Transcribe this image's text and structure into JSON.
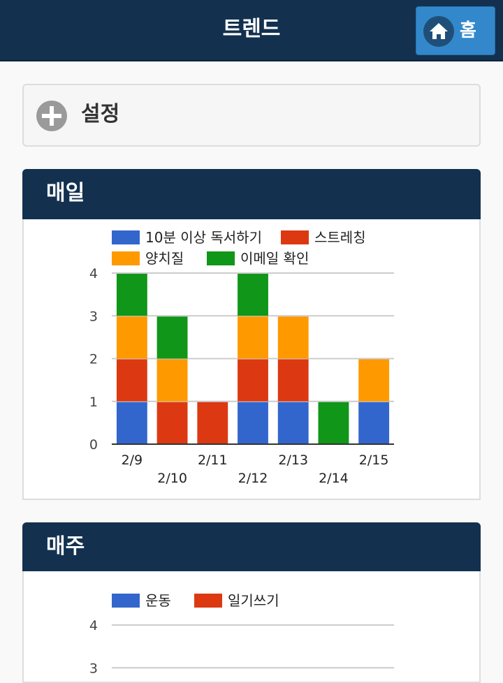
{
  "header": {
    "title": "트렌드",
    "home_label": "홈"
  },
  "settings": {
    "label": "설정"
  },
  "daily": {
    "title": "매일",
    "chart_data": {
      "type": "bar",
      "stacked": true,
      "categories": [
        "2/9",
        "2/10",
        "2/11",
        "2/12",
        "2/13",
        "2/14",
        "2/15"
      ],
      "series": [
        {
          "name": "10분 이상 독서하기",
          "color": "#3366cc",
          "values": [
            1,
            0,
            0,
            1,
            1,
            0,
            1
          ]
        },
        {
          "name": "스트레칭",
          "color": "#dc3912",
          "values": [
            1,
            1,
            1,
            1,
            1,
            0,
            0
          ]
        },
        {
          "name": "양치질",
          "color": "#ff9900",
          "values": [
            1,
            1,
            0,
            1,
            1,
            0,
            1
          ]
        },
        {
          "name": "이메일 확인",
          "color": "#109618",
          "values": [
            1,
            1,
            0,
            1,
            0,
            1,
            0
          ]
        }
      ],
      "y_ticks": [
        "0",
        "1",
        "2",
        "3",
        "4"
      ],
      "ylim": [
        0,
        4
      ],
      "grid": true,
      "legend": "top"
    }
  },
  "weekly": {
    "title": "매주",
    "chart_data": {
      "type": "bar",
      "stacked": true,
      "categories": [],
      "series": [
        {
          "name": "운동",
          "color": "#3366cc",
          "values": []
        },
        {
          "name": "일기쓰기",
          "color": "#dc3912",
          "values": []
        }
      ],
      "y_ticks": [
        "3",
        "4"
      ],
      "ylim": [
        0,
        4
      ],
      "grid": true,
      "legend": "top"
    }
  }
}
